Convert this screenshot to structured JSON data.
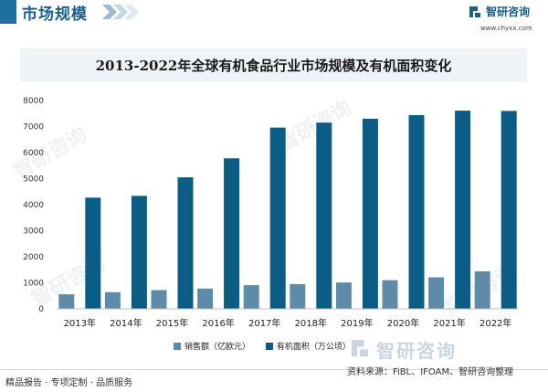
{
  "header": {
    "title": "市场规模"
  },
  "logo": {
    "name": "智研咨询",
    "url": "www.chyxx.com"
  },
  "watermark": {
    "text": "智研咨询"
  },
  "chart_data": {
    "type": "bar",
    "title": "2013-2022年全球有机食品行业市场规模及有机面积变化",
    "categories": [
      "2013年",
      "2014年",
      "2015年",
      "2016年",
      "2017年",
      "2018年",
      "2019年",
      "2020年",
      "2021年",
      "2022年"
    ],
    "series": [
      {
        "name": "销售额（亿欧元）",
        "color": "#5e8ca8",
        "values": [
          560,
          640,
          720,
          780,
          910,
          950,
          1010,
          1100,
          1210,
          1440
        ]
      },
      {
        "name": "有机面积（万公顷）",
        "color": "#0b5d86",
        "values": [
          4270,
          4340,
          5050,
          5780,
          6960,
          7150,
          7300,
          7440,
          7610,
          7600
        ]
      }
    ],
    "ylim": [
      0,
      8000
    ],
    "yticks": [
      "0",
      "1000",
      "2000",
      "3000",
      "4000",
      "5000",
      "6000",
      "7000",
      "8000"
    ],
    "grid": false,
    "legend": "bottom"
  },
  "footer": {
    "left": "精品报告 · 专项定制 · 品质服务",
    "source": "资料来源：FiBL、IFOAM、智研咨询整理"
  }
}
